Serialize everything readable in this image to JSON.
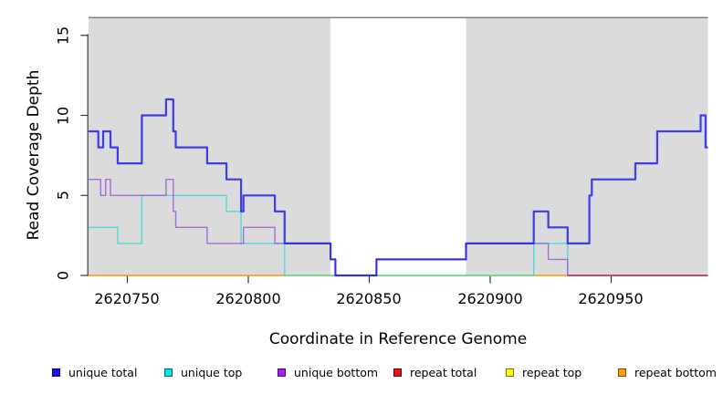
{
  "y_axis": {
    "label": "Read Coverage Depth",
    "tick_labels": [
      "0",
      "5",
      "10",
      "15"
    ]
  },
  "x_axis": {
    "label": "Coordinate in Reference Genome",
    "tick_labels": [
      "2620750",
      "2620800",
      "2620850",
      "2620900",
      "2620950"
    ]
  },
  "legend": {
    "items": [
      {
        "label": "unique total",
        "color": "#1414EE"
      },
      {
        "label": "unique top",
        "color": "#00E5E5"
      },
      {
        "label": "unique bottom",
        "color": "#A020F0"
      },
      {
        "label": "repeat total",
        "color": "#EE1111"
      },
      {
        "label": "repeat top",
        "color": "#FFFF00"
      },
      {
        "label": "repeat bottom",
        "color": "#FFA500"
      }
    ]
  },
  "chart_data": {
    "type": "line",
    "subtype": "step-coverage",
    "title": "",
    "xlabel": "Coordinate in Reference Genome",
    "ylabel": "Read Coverage Depth",
    "xlim": [
      2620734,
      2620990
    ],
    "ylim": [
      0,
      16
    ],
    "x_ticks": [
      2620750,
      2620800,
      2620850,
      2620900,
      2620950
    ],
    "y_ticks": [
      0,
      5,
      10,
      15
    ],
    "grid": false,
    "legend_position": "bottom",
    "shade_color": "#DBDBDB",
    "shaded_regions": [
      [
        2620734,
        2620834
      ],
      [
        2620890,
        2620990
      ]
    ],
    "unshaded_gap_region": [
      2620834,
      2620890
    ],
    "series": [
      {
        "name": "repeat bottom",
        "color": "#FF9900",
        "opacity": 1,
        "width": 1.6,
        "steps": [
          [
            2620734,
            0
          ],
          [
            2620932,
            0
          ]
        ]
      },
      {
        "name": "repeat top",
        "color": "#E8E830",
        "opacity": 1,
        "width": 1.6,
        "steps": [
          [
            2620815,
            0
          ],
          [
            2620918,
            0
          ]
        ]
      },
      {
        "name": "unique top",
        "color": "#00D8D8",
        "opacity": 0.65,
        "width": 1.4,
        "steps": [
          [
            2620734,
            3
          ],
          [
            2620746,
            2
          ],
          [
            2620756,
            5
          ],
          [
            2620791,
            4
          ],
          [
            2620797,
            2
          ],
          [
            2620815,
            0
          ],
          [
            2620918,
            2
          ],
          [
            2620932,
            0
          ],
          [
            2620990,
            0
          ]
        ]
      },
      {
        "name": "unique bottom",
        "color": "#9A4FD0",
        "opacity": 0.8,
        "width": 1.4,
        "steps": [
          [
            2620734,
            6
          ],
          [
            2620739,
            5
          ],
          [
            2620741,
            6
          ],
          [
            2620743,
            5
          ],
          [
            2620766,
            6
          ],
          [
            2620769,
            4
          ],
          [
            2620770,
            3
          ],
          [
            2620783,
            2
          ],
          [
            2620798,
            3
          ],
          [
            2620811,
            2
          ],
          [
            2620834,
            1
          ],
          [
            2620836,
            0
          ],
          [
            2620853,
            1
          ],
          [
            2620890,
            2
          ],
          [
            2620924,
            1
          ],
          [
            2620932,
            0
          ],
          [
            2620990,
            0
          ]
        ]
      },
      {
        "name": "repeat total",
        "color": "#CC2A55",
        "opacity": 0.95,
        "width": 1.6,
        "steps": [
          [
            2620932,
            0
          ],
          [
            2620990,
            0
          ]
        ]
      },
      {
        "name": "unique total",
        "color": "#2020EE",
        "opacity": 0.85,
        "width": 2.2,
        "steps": [
          [
            2620734,
            9
          ],
          [
            2620738,
            8
          ],
          [
            2620740,
            9
          ],
          [
            2620743,
            8
          ],
          [
            2620746,
            7
          ],
          [
            2620756,
            10
          ],
          [
            2620766,
            11
          ],
          [
            2620769,
            9
          ],
          [
            2620770,
            8
          ],
          [
            2620783,
            7
          ],
          [
            2620791,
            6
          ],
          [
            2620797,
            4
          ],
          [
            2620798,
            5
          ],
          [
            2620811,
            4
          ],
          [
            2620815,
            2
          ],
          [
            2620834,
            1
          ],
          [
            2620836,
            0
          ],
          [
            2620853,
            1
          ],
          [
            2620890,
            2
          ],
          [
            2620918,
            4
          ],
          [
            2620924,
            3
          ],
          [
            2620932,
            2
          ],
          [
            2620941,
            5
          ],
          [
            2620942,
            6
          ],
          [
            2620960,
            7
          ],
          [
            2620969,
            9
          ],
          [
            2620987,
            10
          ],
          [
            2620989,
            8
          ],
          [
            2620990,
            8
          ]
        ]
      }
    ]
  }
}
